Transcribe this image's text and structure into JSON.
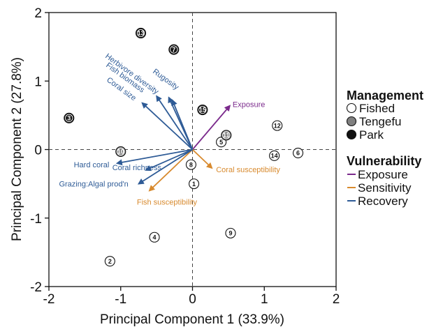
{
  "chart_data": {
    "type": "scatter",
    "xlabel": "Principal Component 1 (33.9%)",
    "ylabel": "Principal Component 2 (27.8%)",
    "xlim": [
      -2,
      2
    ],
    "ylim": [
      -2,
      2
    ],
    "xticks": [
      -2,
      -1,
      0,
      1,
      2
    ],
    "yticks": [
      -2,
      -1,
      0,
      1,
      2
    ],
    "zero_lines": "dashed",
    "points": [
      {
        "label": "1",
        "x": 0.02,
        "y": -0.5,
        "management": "Fished"
      },
      {
        "label": "2",
        "x": -1.15,
        "y": -1.63,
        "management": "Fished"
      },
      {
        "label": "3",
        "x": -1.72,
        "y": 0.46,
        "management": "Park"
      },
      {
        "label": "4",
        "x": -0.53,
        "y": -1.28,
        "management": "Fished"
      },
      {
        "label": "5",
        "x": 0.4,
        "y": 0.11,
        "management": "Fished"
      },
      {
        "label": "6",
        "x": 1.47,
        "y": -0.05,
        "management": "Fished"
      },
      {
        "label": "7",
        "x": -0.26,
        "y": 1.46,
        "management": "Park"
      },
      {
        "label": "8",
        "x": -0.02,
        "y": -0.22,
        "management": "Fished"
      },
      {
        "label": "9",
        "x": 0.53,
        "y": -1.22,
        "management": "Fished"
      },
      {
        "label": "10",
        "x": -1.0,
        "y": -0.03,
        "management": "Tengefu"
      },
      {
        "label": "11",
        "x": 0.47,
        "y": 0.21,
        "management": "Tengefu"
      },
      {
        "label": "12",
        "x": 1.18,
        "y": 0.35,
        "management": "Fished"
      },
      {
        "label": "13",
        "x": -0.72,
        "y": 1.7,
        "management": "Park"
      },
      {
        "label": "14",
        "x": 1.14,
        "y": -0.09,
        "management": "Fished"
      },
      {
        "label": "15",
        "x": 0.14,
        "y": 0.58,
        "management": "Park"
      }
    ],
    "vectors": [
      {
        "label": "Exposure",
        "group": "Exposure",
        "x": 0.52,
        "y": 0.64
      },
      {
        "label": "Coral susceptibility",
        "group": "Sensitivity",
        "x": 0.27,
        "y": -0.27
      },
      {
        "label": "Fish susceptibility",
        "group": "Sensitivity",
        "x": -0.6,
        "y": -0.6
      },
      {
        "label": "Herbivore diversity",
        "group": "Recovery",
        "x": -0.33,
        "y": 0.76
      },
      {
        "label": "Fish biomass",
        "group": "Recovery",
        "x": -0.5,
        "y": 0.78
      },
      {
        "label": "Rugosity",
        "group": "Recovery",
        "x": -0.28,
        "y": 0.72
      },
      {
        "label": "Coral size",
        "group": "Recovery",
        "x": -0.7,
        "y": 0.68
      },
      {
        "label": "Hard coral",
        "group": "Recovery",
        "x": -1.05,
        "y": -0.2
      },
      {
        "label": "Coral richness",
        "group": "Recovery",
        "x": -0.65,
        "y": -0.3
      },
      {
        "label": "Grazing:Algal prod'n",
        "group": "Recovery",
        "x": -0.75,
        "y": -0.5
      }
    ],
    "legend": {
      "position": "right",
      "management_title": "Management",
      "management": [
        {
          "name": "Fished",
          "fill": "#ffffff"
        },
        {
          "name": "Tengefu",
          "fill": "#808080"
        },
        {
          "name": "Park",
          "fill": "#111111"
        }
      ],
      "vulnerability_title": "Vulnerability",
      "vulnerability": [
        {
          "name": "Exposure",
          "color": "#7b2a8c"
        },
        {
          "name": "Sensitivity",
          "color": "#d88a2e"
        },
        {
          "name": "Recovery",
          "color": "#2e5b96"
        }
      ]
    }
  }
}
